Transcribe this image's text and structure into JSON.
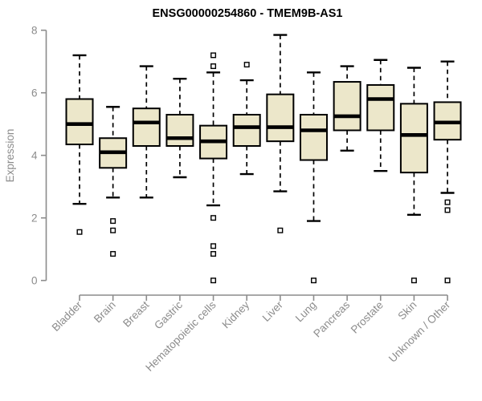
{
  "chart_data": {
    "type": "box",
    "title": "ENSG00000254860 - TMEM9B-AS1",
    "ylabel": "Expression",
    "xlabel": "",
    "ylim": [
      0,
      8
    ],
    "yticks": [
      0,
      2,
      4,
      6,
      8
    ],
    "grid": false,
    "legend": null,
    "categories": [
      "Bladder",
      "Brain",
      "Breast",
      "Gastric",
      "Hematopoietic cells",
      "Kidney",
      "Liver",
      "Lung",
      "Pancreas",
      "Prostate",
      "Skin",
      "Unknown / Other"
    ],
    "series": [
      {
        "name": "Bladder",
        "whisker_low": 2.45,
        "q1": 4.35,
        "median": 5.0,
        "q3": 5.8,
        "whisker_high": 7.2,
        "outliers": [
          1.55
        ]
      },
      {
        "name": "Brain",
        "whisker_low": 2.65,
        "q1": 3.6,
        "median": 4.1,
        "q3": 4.55,
        "whisker_high": 5.55,
        "outliers": [
          1.9,
          1.6,
          0.85
        ]
      },
      {
        "name": "Breast",
        "whisker_low": 2.65,
        "q1": 4.3,
        "median": 5.05,
        "q3": 5.5,
        "whisker_high": 6.85,
        "outliers": []
      },
      {
        "name": "Gastric",
        "whisker_low": 3.3,
        "q1": 4.3,
        "median": 4.55,
        "q3": 5.3,
        "whisker_high": 6.45,
        "outliers": []
      },
      {
        "name": "Hematopoietic cells",
        "whisker_low": 2.4,
        "q1": 3.9,
        "median": 4.45,
        "q3": 4.95,
        "whisker_high": 6.65,
        "outliers": [
          7.2,
          6.85,
          2.0,
          1.1,
          0.85,
          0
        ]
      },
      {
        "name": "Kidney",
        "whisker_low": 3.4,
        "q1": 4.3,
        "median": 4.9,
        "q3": 5.3,
        "whisker_high": 6.4,
        "outliers": [
          6.9
        ]
      },
      {
        "name": "Liver",
        "whisker_low": 2.85,
        "q1": 4.45,
        "median": 4.9,
        "q3": 5.95,
        "whisker_high": 7.85,
        "outliers": [
          1.6
        ]
      },
      {
        "name": "Lung",
        "whisker_low": 1.9,
        "q1": 3.85,
        "median": 4.8,
        "q3": 5.3,
        "whisker_high": 6.65,
        "outliers": [
          0
        ]
      },
      {
        "name": "Pancreas",
        "whisker_low": 4.15,
        "q1": 4.8,
        "median": 5.25,
        "q3": 6.35,
        "whisker_high": 6.85,
        "outliers": []
      },
      {
        "name": "Prostate",
        "whisker_low": 3.5,
        "q1": 4.8,
        "median": 5.8,
        "q3": 6.25,
        "whisker_high": 7.05,
        "outliers": []
      },
      {
        "name": "Skin",
        "whisker_low": 2.1,
        "q1": 3.45,
        "median": 4.65,
        "q3": 5.65,
        "whisker_high": 6.8,
        "outliers": [
          0
        ]
      },
      {
        "name": "Unknown / Other",
        "whisker_low": 2.8,
        "q1": 4.5,
        "median": 5.05,
        "q3": 5.7,
        "whisker_high": 7.0,
        "outliers": [
          2.5,
          2.25,
          0
        ]
      }
    ],
    "colors": {
      "box_fill": "#ECE7CA",
      "box_border": "#000000",
      "median": "#000000",
      "whisker": "#000000",
      "outlier_fill": "#FFFFFF",
      "outlier_border": "#000000",
      "axis": "#8C8C8C",
      "tick_label": "#8C8C8C",
      "title": "#000000",
      "background": "#FFFFFF"
    }
  }
}
